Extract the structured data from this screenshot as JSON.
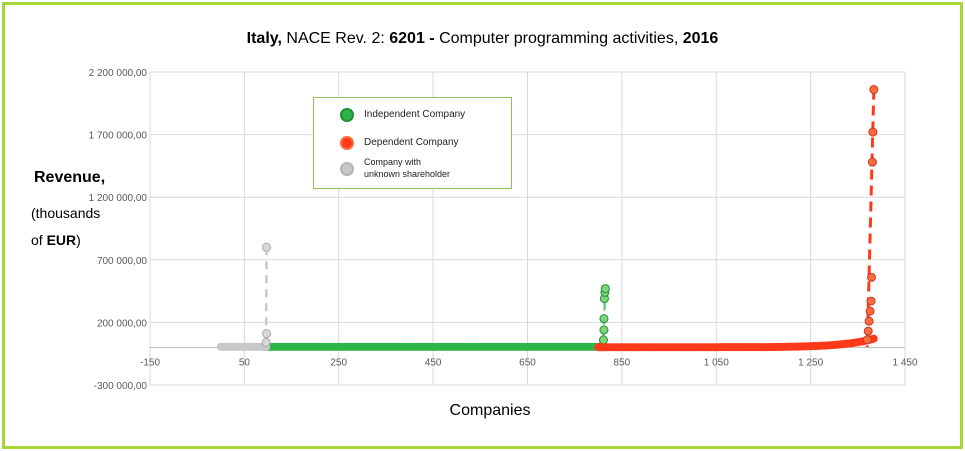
{
  "chart_data": {
    "type": "scatter",
    "title_parts": {
      "country": "Italy,",
      "nace_prefix": "NACE Rev. 2:",
      "code": "6201 -",
      "activity": "Computer programming activities,",
      "year": "2016"
    },
    "ylabel": {
      "main": "Revenue,",
      "sub1": "(thousands",
      "sub2_prefix": "of",
      "sub2_unit": "EUR",
      "sub2_suffix": ")"
    },
    "xlabel": "Companies",
    "xlim": [
      -150,
      1450
    ],
    "ylim": [
      -300000,
      2200000
    ],
    "x_ticks": [
      {
        "value": -150,
        "label": "-150"
      },
      {
        "value": 50,
        "label": "50"
      },
      {
        "value": 250,
        "label": "250"
      },
      {
        "value": 450,
        "label": "450"
      },
      {
        "value": 650,
        "label": "650"
      },
      {
        "value": 850,
        "label": "850"
      },
      {
        "value": 1050,
        "label": "1 050"
      },
      {
        "value": 1250,
        "label": "1 250"
      },
      {
        "value": 1450,
        "label": "1 450"
      }
    ],
    "y_ticks": [
      {
        "value": -300000,
        "label": "-300 000,00"
      },
      {
        "value": 200000,
        "label": "200 000,00"
      },
      {
        "value": 700000,
        "label": "700 000,00"
      },
      {
        "value": 1200000,
        "label": "1 200 000,00"
      },
      {
        "value": 1700000,
        "label": "1 700 000,00"
      },
      {
        "value": 2200000,
        "label": "2 200 000,00"
      }
    ],
    "grid": true,
    "legend_position": "upper-left inside plot",
    "series": [
      {
        "name": "Independent Company",
        "color": "#2db54a",
        "edge": "#1e8f35",
        "x_start": 90,
        "x_end": 816,
        "baseline": 5000,
        "outliers": [
          {
            "x": 810,
            "y": 20000
          },
          {
            "x": 811,
            "y": 60000
          },
          {
            "x": 812,
            "y": 140000
          },
          {
            "x": 812,
            "y": 230000
          },
          {
            "x": 813,
            "y": 390000
          },
          {
            "x": 814,
            "y": 440000
          },
          {
            "x": 815,
            "y": 470000
          }
        ]
      },
      {
        "name": "Dependent Company",
        "color": "#ff3a1a",
        "edge": "#c0392b",
        "x_start": 800,
        "x_end": 1384,
        "baseline": 3000,
        "outliers": [
          {
            "x": 1370,
            "y": 60000
          },
          {
            "x": 1372,
            "y": 130000
          },
          {
            "x": 1374,
            "y": 210000
          },
          {
            "x": 1376,
            "y": 290000
          },
          {
            "x": 1378,
            "y": 370000
          },
          {
            "x": 1379,
            "y": 560000
          },
          {
            "x": 1381,
            "y": 1480000
          },
          {
            "x": 1382,
            "y": 1720000
          },
          {
            "x": 1384,
            "y": 2060000
          }
        ]
      },
      {
        "name": "Company with unknown shareholder",
        "legend_lines": [
          "Company with",
          "unknown shareholder"
        ],
        "color": "#c8c8c8",
        "edge": "#a8a8a8",
        "x_start": 0,
        "x_end": 97,
        "baseline": 5000,
        "outliers": [
          {
            "x": 96,
            "y": 40000
          },
          {
            "x": 97,
            "y": 110000
          },
          {
            "x": 97,
            "y": 800000
          }
        ]
      }
    ]
  }
}
